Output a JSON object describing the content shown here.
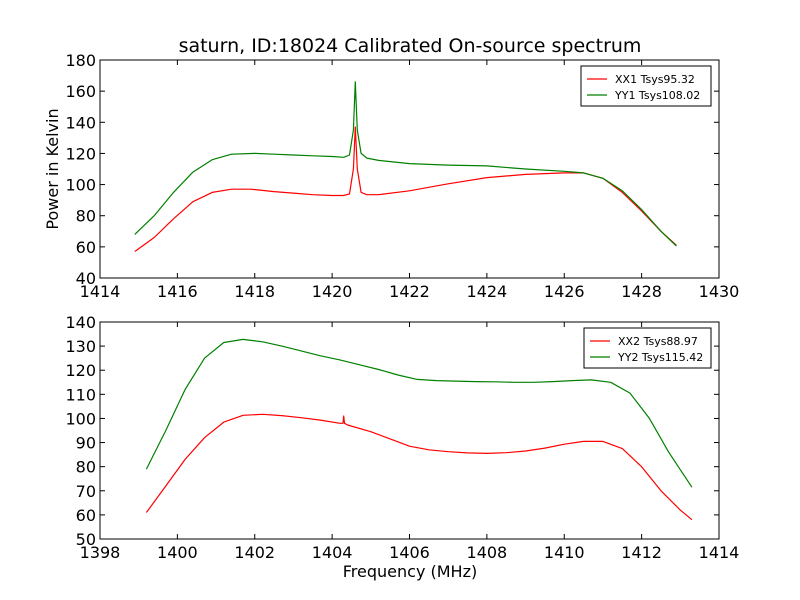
{
  "chart_data": [
    {
      "type": "line",
      "title": "saturn, ID:18024 Calibrated On-source spectrum",
      "xlabel": "",
      "ylabel": "Power in Kelvin",
      "xlim": [
        1414,
        1430
      ],
      "ylim": [
        40,
        180
      ],
      "xticks": [
        1414,
        1416,
        1418,
        1420,
        1422,
        1424,
        1426,
        1428,
        1430
      ],
      "yticks": [
        40,
        60,
        80,
        100,
        120,
        140,
        160,
        180
      ],
      "grid": false,
      "legend_position": "top-right",
      "series": [
        {
          "name": "XX1 Tsys95.32",
          "color": "#ff0000",
          "x": [
            1414.9,
            1415.4,
            1415.9,
            1416.4,
            1416.9,
            1417.4,
            1417.9,
            1418.5,
            1419.0,
            1419.5,
            1420.0,
            1420.3,
            1420.45,
            1420.55,
            1420.6,
            1420.65,
            1420.75,
            1420.9,
            1421.2,
            1422.0,
            1423.0,
            1424.0,
            1425.0,
            1426.0,
            1426.5,
            1427.0,
            1427.5,
            1428.0,
            1428.5,
            1428.9
          ],
          "y": [
            57,
            66,
            78,
            89,
            95,
            97,
            97,
            95.5,
            94.5,
            93.5,
            93,
            93,
            94,
            110,
            137,
            110,
            95,
            93.5,
            93.5,
            96,
            100.5,
            104.5,
            106.5,
            107.5,
            107.5,
            104,
            95,
            83,
            70,
            61
          ]
        },
        {
          "name": "YY1 Tsys108.02",
          "color": "#008000",
          "x": [
            1414.9,
            1415.4,
            1415.9,
            1416.4,
            1416.9,
            1417.4,
            1418.0,
            1418.5,
            1419.0,
            1419.5,
            1420.0,
            1420.3,
            1420.45,
            1420.55,
            1420.6,
            1420.65,
            1420.75,
            1420.9,
            1421.2,
            1422.0,
            1423.0,
            1424.0,
            1425.0,
            1426.0,
            1426.5,
            1427.0,
            1427.5,
            1428.0,
            1428.5,
            1428.9
          ],
          "y": [
            68,
            80,
            95,
            108,
            116,
            119.5,
            120,
            119.5,
            119,
            118.5,
            118,
            117.5,
            119,
            135,
            166,
            135,
            120,
            117,
            115.5,
            113.5,
            112.5,
            112,
            110,
            108.5,
            107.5,
            104,
            96,
            84,
            70,
            60.5
          ]
        }
      ]
    },
    {
      "type": "line",
      "title": "",
      "xlabel": "Frequency (MHz)",
      "ylabel": "",
      "xlim": [
        1398,
        1414
      ],
      "ylim": [
        50,
        140
      ],
      "xticks": [
        1398,
        1400,
        1402,
        1404,
        1406,
        1408,
        1410,
        1412,
        1414
      ],
      "yticks": [
        50,
        60,
        70,
        80,
        90,
        100,
        110,
        120,
        130,
        140
      ],
      "grid": false,
      "legend_position": "top-right",
      "series": [
        {
          "name": "XX2 Tsys88.97",
          "color": "#ff0000",
          "x": [
            1399.2,
            1399.7,
            1400.2,
            1400.7,
            1401.2,
            1401.7,
            1402.2,
            1402.7,
            1403.2,
            1403.7,
            1404.2,
            1404.28,
            1404.3,
            1404.32,
            1404.4,
            1405.0,
            1405.5,
            1406.0,
            1406.5,
            1407.0,
            1407.5,
            1408.0,
            1408.5,
            1409.0,
            1409.5,
            1410.0,
            1410.5,
            1411.0,
            1411.5,
            1412.0,
            1412.5,
            1413.0,
            1413.3
          ],
          "y": [
            61,
            72,
            83,
            92,
            98.5,
            101.3,
            101.7,
            101.2,
            100.3,
            99.3,
            98,
            98,
            101,
            98,
            97.3,
            94.5,
            91.5,
            88.5,
            87,
            86.2,
            85.7,
            85.5,
            85.8,
            86.5,
            87.7,
            89.3,
            90.5,
            90.5,
            87.5,
            80,
            70,
            62,
            58
          ]
        },
        {
          "name": "YY2 Tsys115.42",
          "color": "#008000",
          "x": [
            1399.2,
            1399.7,
            1400.2,
            1400.7,
            1401.2,
            1401.7,
            1402.2,
            1402.7,
            1403.2,
            1403.7,
            1404.2,
            1404.7,
            1405.2,
            1405.7,
            1406.2,
            1406.7,
            1407.2,
            1407.7,
            1408.2,
            1408.7,
            1409.2,
            1409.7,
            1410.2,
            1410.7,
            1411.2,
            1411.7,
            1412.2,
            1412.7,
            1413.3
          ],
          "y": [
            79,
            95,
            112,
            125,
            131.5,
            132.8,
            131.8,
            130,
            128,
            126,
            124.3,
            122.3,
            120.3,
            118,
            116.2,
            115.7,
            115.5,
            115.3,
            115.2,
            115,
            115,
            115.3,
            115.7,
            116,
            115,
            110.5,
            100,
            86,
            71.5
          ]
        }
      ]
    }
  ]
}
